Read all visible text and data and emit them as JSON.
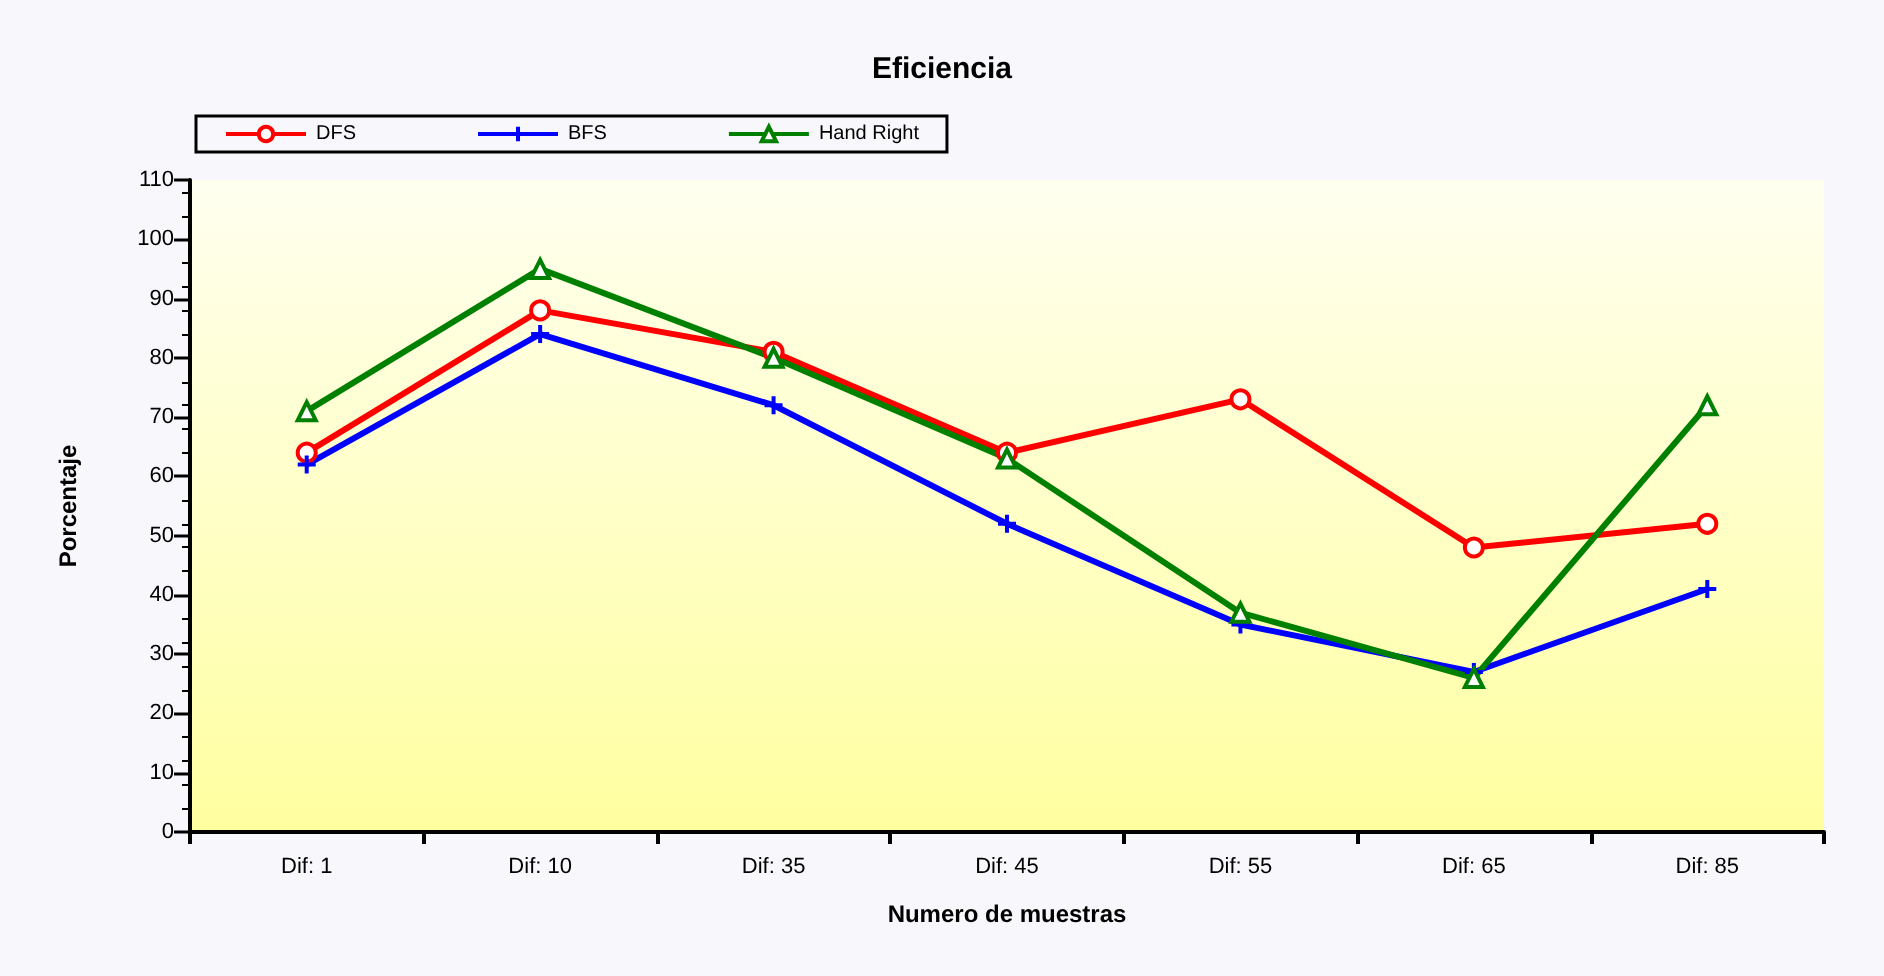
{
  "chart_data": {
    "type": "line",
    "title": "Eficiencia",
    "xlabel": "Numero de muestras",
    "ylabel": "Porcentaje",
    "categories": [
      "Dif: 1",
      "Dif: 10",
      "Dif: 35",
      "Dif: 45",
      "Dif: 55",
      "Dif: 65",
      "Dif: 85"
    ],
    "series": [
      {
        "name": "DFS",
        "color": "#ff0000",
        "marker": "circle",
        "values": [
          64,
          88,
          81,
          64,
          73,
          48,
          52
        ]
      },
      {
        "name": "BFS",
        "color": "#0000ff",
        "marker": "cross",
        "values": [
          62,
          84,
          72,
          52,
          35,
          27,
          41
        ]
      },
      {
        "name": "Hand Right",
        "color": "#008000",
        "marker": "triangle",
        "values": [
          71,
          95,
          80,
          63,
          37,
          26,
          72
        ]
      }
    ],
    "ylim": [
      0,
      110
    ],
    "yticks": [
      0,
      10,
      20,
      30,
      40,
      50,
      60,
      70,
      80,
      90,
      100,
      110
    ],
    "grid": false,
    "legend": "top",
    "line_style": "solid"
  }
}
